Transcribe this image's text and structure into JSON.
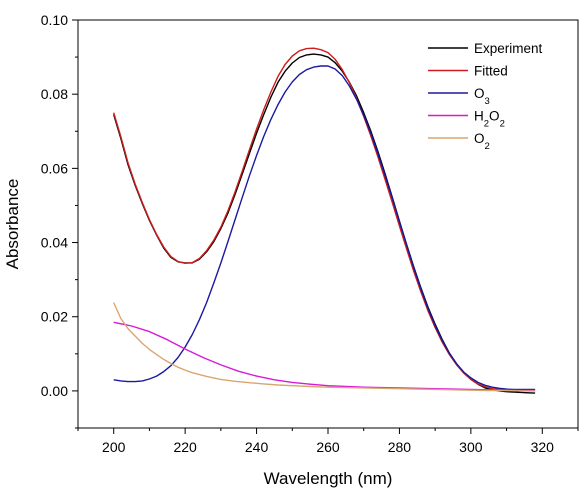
{
  "chart_data": {
    "type": "line",
    "xlabel": "Wavelength (nm)",
    "ylabel": "Absorbance",
    "xlim": [
      190,
      330
    ],
    "ylim": [
      -0.01,
      0.1
    ],
    "x_ticks": [
      "200",
      "220",
      "240",
      "260",
      "280",
      "300",
      "320"
    ],
    "y_ticks": [
      "0.00",
      "0.02",
      "0.04",
      "0.06",
      "0.08",
      "0.10"
    ],
    "legend": {
      "placement": "top-right",
      "entries": [
        {
          "name": "Experiment",
          "sub": ""
        },
        {
          "name": "Fitted",
          "sub": ""
        },
        {
          "name": "O",
          "sub": "3"
        },
        {
          "name": "H",
          "sub": "2",
          "name2": "O",
          "sub2": "2"
        },
        {
          "name": "O",
          "sub": "2"
        }
      ]
    },
    "series": [
      {
        "name": "Experiment",
        "color": "#000000",
        "x": [
          200,
          202,
          204,
          206,
          208,
          210,
          212,
          214,
          216,
          218,
          220,
          222,
          224,
          226,
          228,
          230,
          232,
          234,
          236,
          238,
          240,
          242,
          244,
          246,
          248,
          250,
          252,
          254,
          256,
          258,
          260,
          262,
          264,
          266,
          268,
          270,
          272,
          274,
          276,
          278,
          280,
          282,
          284,
          286,
          288,
          290,
          292,
          294,
          296,
          298,
          300,
          302,
          304,
          306,
          308,
          310,
          312,
          314,
          316,
          318
        ],
        "y": [
          0.0745,
          0.068,
          0.061,
          0.0555,
          0.0505,
          0.046,
          0.042,
          0.0385,
          0.036,
          0.0348,
          0.0345,
          0.0345,
          0.0355,
          0.0375,
          0.0402,
          0.0438,
          0.048,
          0.053,
          0.0585,
          0.064,
          0.0695,
          0.0745,
          0.0792,
          0.0832,
          0.0862,
          0.0884,
          0.0899,
          0.0906,
          0.0908,
          0.0906,
          0.09,
          0.0885,
          0.0862,
          0.0832,
          0.0795,
          0.075,
          0.07,
          0.0645,
          0.0585,
          0.0522,
          0.0458,
          0.0395,
          0.0335,
          0.0278,
          0.0226,
          0.018,
          0.0138,
          0.0102,
          0.0073,
          0.0049,
          0.0031,
          0.0018,
          0.0008,
          0.0003,
          0.0,
          -0.0002,
          -0.0003,
          -0.0004,
          -0.0005,
          -0.0006
        ]
      },
      {
        "name": "Fitted",
        "color": "#d01c1c",
        "x": [
          200,
          202,
          204,
          206,
          208,
          210,
          212,
          214,
          216,
          218,
          220,
          222,
          224,
          226,
          228,
          230,
          232,
          234,
          236,
          238,
          240,
          242,
          244,
          246,
          248,
          250,
          252,
          254,
          256,
          258,
          260,
          262,
          264,
          266,
          268,
          270,
          272,
          274,
          276,
          278,
          280,
          282,
          284,
          286,
          288,
          290,
          292,
          294,
          296,
          298,
          300,
          302,
          304,
          306,
          308,
          310,
          312,
          314,
          316,
          318
        ],
        "y": [
          0.075,
          0.0685,
          0.0615,
          0.0558,
          0.0508,
          0.0462,
          0.0422,
          0.0388,
          0.0362,
          0.0349,
          0.0344,
          0.0346,
          0.0357,
          0.0378,
          0.0406,
          0.0442,
          0.0486,
          0.0537,
          0.0593,
          0.065,
          0.0706,
          0.0758,
          0.0806,
          0.0848,
          0.088,
          0.0903,
          0.0917,
          0.0923,
          0.0924,
          0.092,
          0.0912,
          0.0894,
          0.0866,
          0.0831,
          0.0788,
          0.074,
          0.0687,
          0.063,
          0.057,
          0.0508,
          0.0445,
          0.0383,
          0.0323,
          0.0267,
          0.0216,
          0.0171,
          0.0131,
          0.0098,
          0.007,
          0.0048,
          0.0031,
          0.0019,
          0.0011,
          0.0006,
          0.0004,
          0.0003,
          0.0002,
          0.0002,
          0.0002,
          0.0003
        ]
      },
      {
        "name": "O3",
        "color": "#1a1aa0",
        "x": [
          200,
          202,
          204,
          206,
          208,
          210,
          212,
          214,
          216,
          218,
          220,
          222,
          224,
          226,
          228,
          230,
          232,
          234,
          236,
          238,
          240,
          242,
          244,
          246,
          248,
          250,
          252,
          254,
          256,
          258,
          260,
          262,
          264,
          266,
          268,
          270,
          272,
          274,
          276,
          278,
          280,
          282,
          284,
          286,
          288,
          290,
          292,
          294,
          296,
          298,
          300,
          302,
          304,
          306,
          308,
          310,
          312,
          314,
          316,
          318
        ],
        "y": [
          0.003,
          0.0027,
          0.0025,
          0.0025,
          0.0027,
          0.0032,
          0.004,
          0.0052,
          0.0068,
          0.009,
          0.0118,
          0.0152,
          0.0192,
          0.0238,
          0.029,
          0.0345,
          0.0403,
          0.0462,
          0.0522,
          0.058,
          0.0635,
          0.0686,
          0.0732,
          0.0772,
          0.0806,
          0.0833,
          0.0853,
          0.0866,
          0.0873,
          0.0876,
          0.0876,
          0.0868,
          0.085,
          0.0822,
          0.0786,
          0.0743,
          0.0694,
          0.0639,
          0.058,
          0.0519,
          0.0456,
          0.0393,
          0.0332,
          0.0275,
          0.0222,
          0.0176,
          0.0135,
          0.0101,
          0.0073,
          0.0051,
          0.0035,
          0.0023,
          0.0015,
          0.001,
          0.0007,
          0.0005,
          0.0004,
          0.0004,
          0.0004,
          0.0004
        ]
      },
      {
        "name": "H2O2",
        "color": "#d81ad8",
        "x": [
          200,
          205,
          210,
          215,
          220,
          225,
          230,
          235,
          240,
          245,
          250,
          255,
          260,
          265,
          270,
          275,
          280,
          285,
          290,
          295,
          300,
          305,
          310,
          315,
          318
        ],
        "y": [
          0.0185,
          0.0175,
          0.016,
          0.0138,
          0.0113,
          0.009,
          0.007,
          0.0053,
          0.004,
          0.003,
          0.0023,
          0.0018,
          0.0014,
          0.0012,
          0.001,
          0.0009,
          0.0008,
          0.0007,
          0.0006,
          0.0005,
          0.0004,
          0.0003,
          0.0002,
          0.0001,
          0.0001
        ]
      },
      {
        "name": "O2",
        "color": "#d9a66f",
        "x": [
          200,
          202,
          204,
          206,
          208,
          210,
          212,
          214,
          216,
          218,
          220,
          222,
          224,
          226,
          228,
          230,
          234,
          238,
          242,
          246,
          250,
          255,
          260,
          265,
          270,
          275,
          280,
          285,
          290,
          295,
          300,
          305,
          310,
          315,
          318
        ],
        "y": [
          0.0238,
          0.0195,
          0.0168,
          0.0148,
          0.0128,
          0.0112,
          0.0098,
          0.0085,
          0.0074,
          0.0064,
          0.0056,
          0.0049,
          0.0044,
          0.0039,
          0.0035,
          0.0031,
          0.0026,
          0.0022,
          0.0019,
          0.0016,
          0.0014,
          0.0012,
          0.001,
          0.0009,
          0.0008,
          0.0007,
          0.0006,
          0.0005,
          0.0004,
          0.0003,
          0.0002,
          0.0001,
          0.0001,
          0.0,
          0.0
        ]
      }
    ]
  }
}
